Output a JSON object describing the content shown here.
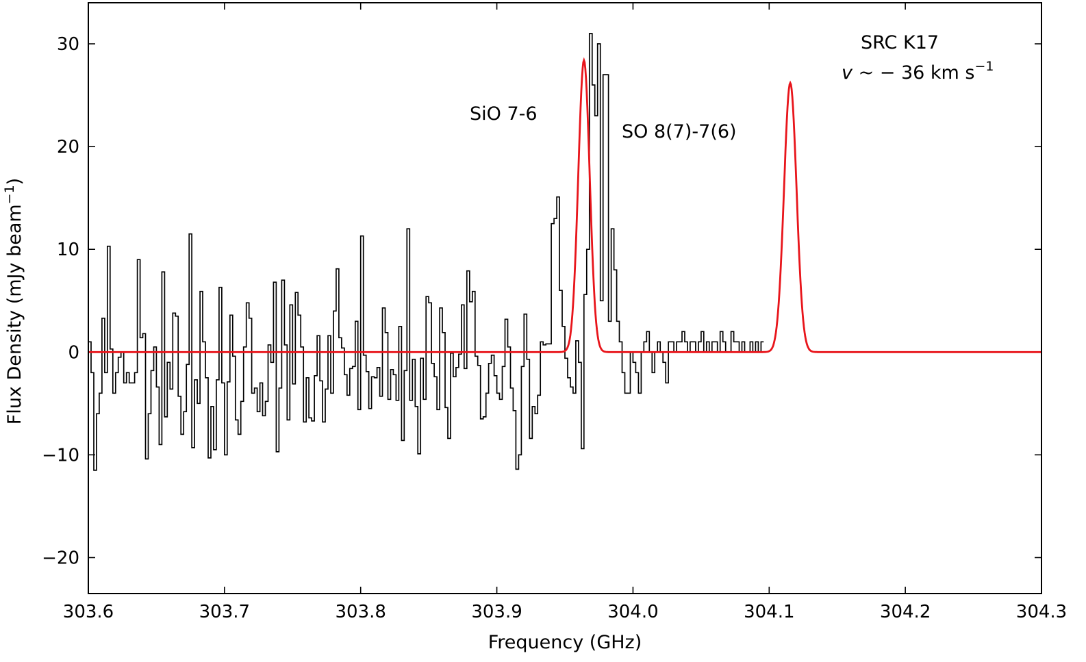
{
  "chart_data": {
    "type": "line",
    "xlabel": "Frequency (GHz)",
    "ylabel": "Flux Density (mJy beam",
    "ylabel_sup": "−1",
    "ylabel_close": ")",
    "xlim": [
      303.6,
      304.3
    ],
    "ylim": [
      -23.5,
      34
    ],
    "x_ticks": [
      303.6,
      303.7,
      303.8,
      303.9,
      304.0,
      304.1,
      304.2,
      304.3
    ],
    "x_tick_labels": [
      "303.6",
      "303.7",
      "303.8",
      "303.9",
      "304.0",
      "304.1",
      "304.2",
      "304.3"
    ],
    "y_ticks": [
      -20,
      -10,
      0,
      10,
      20,
      30
    ],
    "y_tick_labels": [
      "−20",
      "−10",
      "0",
      "10",
      "20",
      "30"
    ],
    "grid": false,
    "annotations": {
      "line1": "SiO 7-6",
      "line2": "SO 8(7)-7(6)",
      "source": "SRC K17",
      "velocity_prefix": "v",
      "velocity_text": " ~ − 36 km s",
      "velocity_sup": "−1"
    },
    "series": [
      {
        "style": "step",
        "color": "#000000",
        "x_start": 303.6,
        "x_step": 0.002,
        "values": [
          1,
          -2,
          -11.5,
          -6,
          -4,
          3.3,
          -2,
          10.3,
          0.3,
          -4,
          -2,
          -0.5,
          0,
          -3,
          -2,
          -3,
          -3,
          -2,
          9,
          1.4,
          1.8,
          -10.4,
          -6,
          -1.8,
          0.5,
          -3.4,
          -9,
          7.8,
          -6.3,
          -1,
          -3.6,
          3.8,
          3.5,
          -4.3,
          -8,
          -5.8,
          -1.2,
          11.5,
          -9.3,
          -2.7,
          -5,
          5.9,
          1,
          -2.5,
          -10.3,
          -5.3,
          -9.5,
          -2.7,
          6.3,
          -3,
          -10,
          -2.9,
          3.6,
          -0.4,
          -6.6,
          -8,
          -4.8,
          0.5,
          4.8,
          3.3,
          -4,
          -3.5,
          -5.8,
          -3,
          -6.2,
          -4.8,
          0.7,
          -1,
          6.8,
          -9.7,
          -3.5,
          7,
          0.7,
          -6.6,
          4.6,
          -3.1,
          5.8,
          3.6,
          0.5,
          -6.8,
          -2.5,
          -6.4,
          -6.7,
          -2.3,
          1.6,
          -2.8,
          -6.8,
          -3.6,
          1.6,
          -4,
          4,
          8.1,
          1.4,
          0.4,
          -2.2,
          -4.2,
          -1.6,
          -1.4,
          3,
          -5.6,
          11.3,
          -0.3,
          -1.9,
          -5.5,
          -2.4,
          -2.5,
          -1.5,
          -4.3,
          4.3,
          1.9,
          -4.6,
          -1.7,
          -2.2,
          -4.7,
          2.5,
          -8.6,
          -1.8,
          12,
          -4.7,
          -0.7,
          -5.3,
          -9.9,
          -0.6,
          -4.6,
          5.4,
          4.8,
          -1.1,
          -2.4,
          -5.6,
          4.3,
          1.9,
          -5.4,
          -8.4,
          -0.1,
          -2.4,
          -1.5,
          -0.2,
          4.6,
          -1.6,
          7.9,
          4.9,
          5.9,
          -0.4,
          -1.3,
          -6.5,
          -6.3,
          -4,
          -1.1,
          -0.3,
          -2.3,
          -4,
          -4.6,
          -1.4,
          3.2,
          0.5,
          -3.5,
          -5.7,
          -11.4,
          -10,
          -1.4,
          3.7,
          -0.7,
          -8.4,
          -5.3,
          -6,
          -4.2,
          1,
          0.7,
          0.8,
          0.8,
          12.5,
          13,
          15.1,
          6,
          2.5,
          -0.6,
          -2.5,
          -3.4,
          -4,
          1.1,
          -1,
          -9.4,
          5.6,
          10,
          31,
          26,
          23,
          30,
          5,
          27,
          27,
          3,
          12,
          8,
          3,
          1,
          -2,
          -4,
          -4,
          0,
          -1,
          -2,
          -4,
          0,
          1,
          2,
          0,
          -2,
          0,
          1,
          0,
          -1,
          -3,
          1,
          1,
          0,
          1,
          1,
          2,
          1,
          0,
          1,
          1,
          0,
          1,
          2,
          0,
          1,
          0,
          1,
          1,
          0,
          2,
          1,
          0,
          0,
          2,
          1,
          1,
          0,
          1,
          0,
          0,
          1,
          0,
          1,
          0,
          1
        ]
      },
      {
        "style": "gaussian-fit",
        "color": "#e8151b",
        "components": [
          {
            "center": 303.964,
            "amplitude": 28.4,
            "sigma": 0.0042
          },
          {
            "center": 304.1155,
            "amplitude": 26.2,
            "sigma": 0.0046
          }
        ]
      }
    ]
  }
}
